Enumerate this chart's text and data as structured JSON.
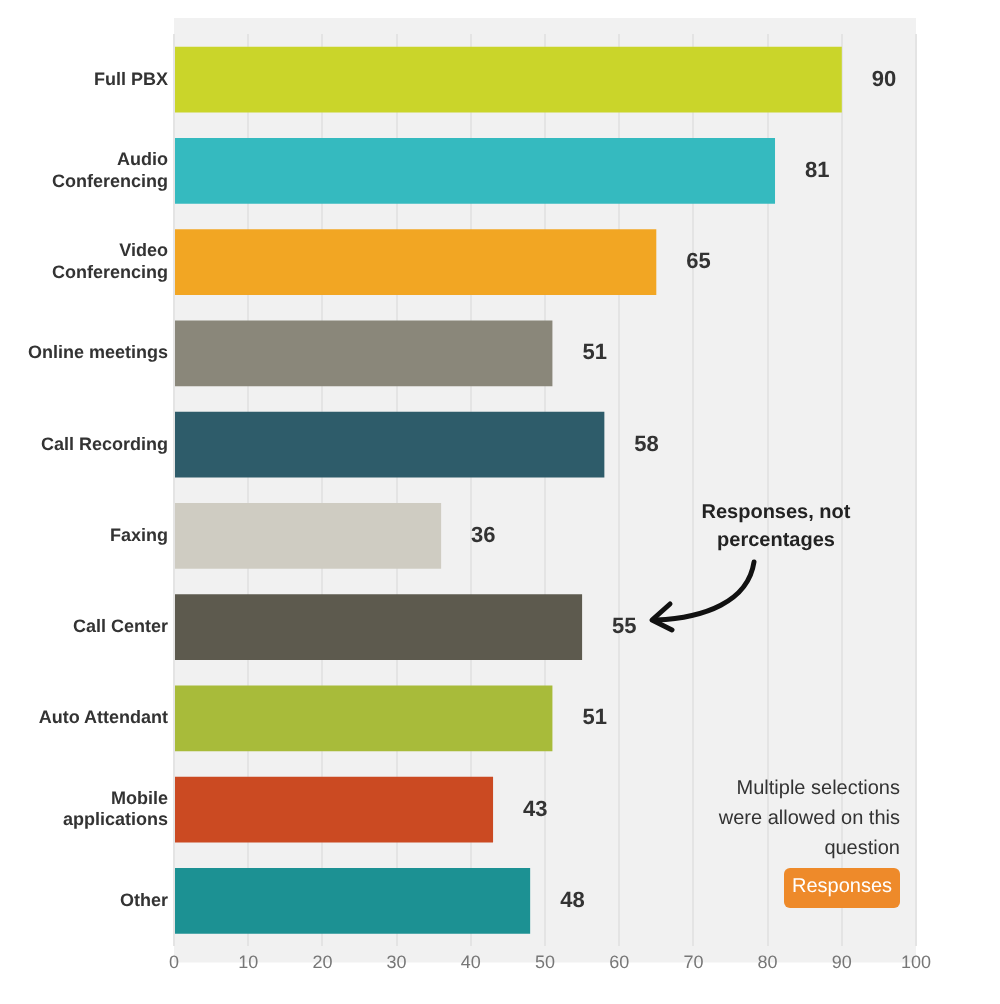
{
  "chart_data": {
    "type": "bar",
    "orientation": "horizontal",
    "categories": [
      "Full PBX",
      "Audio Conferencing",
      "Video Conferencing",
      "Online meetings",
      "Call Recording",
      "Faxing",
      "Call Center",
      "Auto Attendant",
      "Mobile applications",
      "Other"
    ],
    "values": [
      90,
      81,
      65,
      51,
      58,
      36,
      55,
      51,
      43,
      48
    ],
    "colors": [
      "#cad52a",
      "#35babf",
      "#f2a623",
      "#8a877a",
      "#2e5c6a",
      "#cfccc2",
      "#5d5a4e",
      "#a8bb3a",
      "#cb4a22",
      "#1c9193"
    ],
    "xlim": [
      0,
      100
    ],
    "xticks": [
      0,
      10,
      20,
      30,
      40,
      50,
      60,
      70,
      80,
      90,
      100
    ],
    "grid": "x",
    "data_labels": true,
    "annotations": [
      "Responses, not percentages",
      "Multiple selections were allowed on this question",
      "Responses"
    ]
  }
}
